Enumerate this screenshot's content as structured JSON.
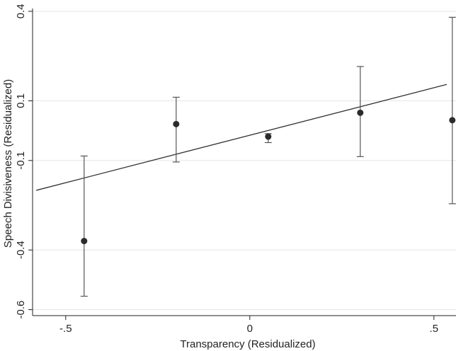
{
  "chart_data": {
    "type": "scatter",
    "title": "",
    "xlabel": "Transparency (Residualized)",
    "ylabel": "Speech Divisiveness (Residualized)",
    "xlim": [
      -0.59,
      0.56
    ],
    "ylim": [
      -0.62,
      0.4
    ],
    "x_ticks": [
      -0.5,
      0,
      0.5
    ],
    "x_tick_labels": [
      "-.5",
      "0",
      ".5"
    ],
    "y_ticks": [
      -0.6,
      -0.4,
      -0.1,
      0.1,
      0.4
    ],
    "y_tick_labels": [
      "-0.6",
      "-0.4",
      "-0.1",
      "0.1",
      "0.4"
    ],
    "grid": true,
    "points": [
      {
        "x": -0.45,
        "y": -0.37,
        "lower": -0.555,
        "upper": -0.085
      },
      {
        "x": -0.2,
        "y": 0.022,
        "lower": -0.105,
        "upper": 0.112
      },
      {
        "x": 0.05,
        "y": -0.02,
        "lower": -0.04,
        "upper": -0.01
      },
      {
        "x": 0.3,
        "y": 0.06,
        "lower": -0.087,
        "upper": 0.215
      },
      {
        "x": 0.55,
        "y": 0.035,
        "lower": -0.245,
        "upper": 0.38
      }
    ],
    "fit_line": {
      "x": [
        -0.58,
        0.535
      ],
      "y": [
        -0.2,
        0.155
      ]
    }
  }
}
